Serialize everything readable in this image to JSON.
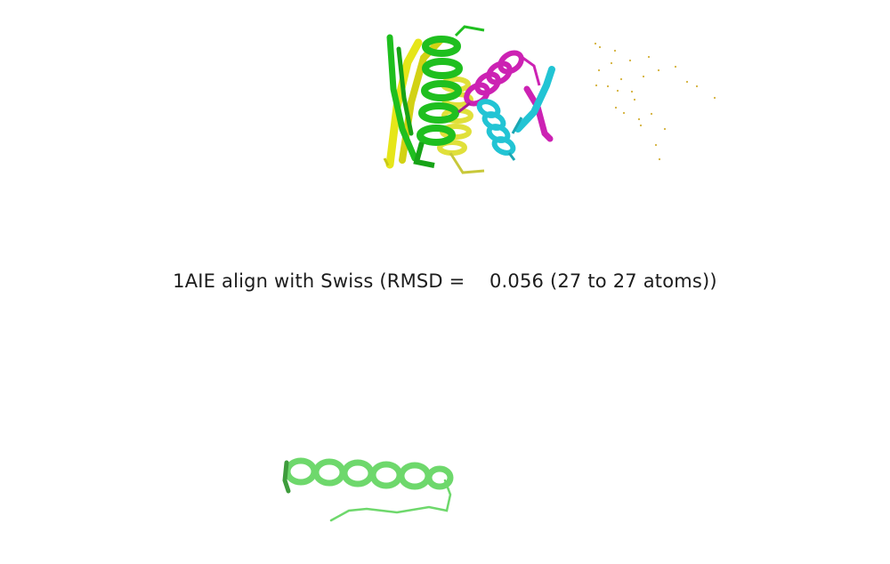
{
  "caption": {
    "text": "1AIE align with Swiss (RMSD =    0.056 (27 to 27 atoms))"
  },
  "colors": {
    "background": "#ffffff",
    "chain_green": "#1fbf1f",
    "chain_yellow": "#e6e619",
    "chain_magenta": "#cc22b3",
    "chain_cyan": "#22c4d4",
    "water_dots": "#d4b13a",
    "single_helix": "#7ce07a",
    "caption_text": "#1c1c1c"
  },
  "structures": [
    {
      "name": "Template tetramer (top)",
      "chains": [
        "green",
        "yellow",
        "magenta",
        "cyan"
      ],
      "representation": "cartoon"
    },
    {
      "name": "Water molecules",
      "representation": "dots"
    },
    {
      "name": "Swiss model helix (bottom)",
      "representation": "cartoon"
    }
  ]
}
